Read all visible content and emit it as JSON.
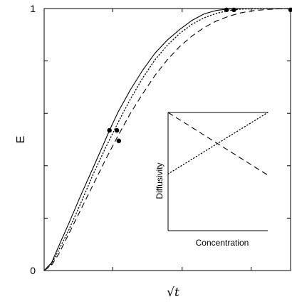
{
  "chart_data": [
    {
      "type": "line",
      "xlabel": "√t",
      "ylabel": "E",
      "xlim": [
        0,
        1
      ],
      "ylim": [
        0,
        1
      ],
      "y_ticks": [
        {
          "value": 0,
          "label": "0"
        },
        {
          "value": 1,
          "label": "1"
        }
      ],
      "x_tick_values": [
        0,
        0.278,
        0.56,
        0.84,
        1
      ],
      "y_minor_tick_values": [
        0.2,
        0.4,
        0.6,
        0.8
      ],
      "grid": false,
      "series": [
        {
          "style": "solid",
          "points": [
            [
              0,
              0
            ],
            [
              0.03,
              0.03
            ],
            [
              0.06,
              0.095
            ],
            [
              0.1,
              0.18
            ],
            [
              0.15,
              0.29
            ],
            [
              0.2,
              0.395
            ],
            [
              0.24,
              0.48
            ],
            [
              0.265,
              0.535
            ],
            [
              0.3,
              0.605
            ],
            [
              0.35,
              0.69
            ],
            [
              0.4,
              0.765
            ],
            [
              0.45,
              0.83
            ],
            [
              0.5,
              0.88
            ],
            [
              0.55,
              0.92
            ],
            [
              0.6,
              0.955
            ],
            [
              0.65,
              0.98
            ],
            [
              0.7,
              0.993
            ],
            [
              0.75,
              0.998
            ],
            [
              0.8,
              1.0
            ],
            [
              1.0,
              1.0
            ]
          ]
        },
        {
          "style": "dotted",
          "points": [
            [
              0,
              0
            ],
            [
              0.03,
              0.025
            ],
            [
              0.06,
              0.08
            ],
            [
              0.1,
              0.155
            ],
            [
              0.15,
              0.26
            ],
            [
              0.2,
              0.37
            ],
            [
              0.25,
              0.47
            ],
            [
              0.3,
              0.565
            ],
            [
              0.35,
              0.655
            ],
            [
              0.4,
              0.735
            ],
            [
              0.45,
              0.805
            ],
            [
              0.5,
              0.86
            ],
            [
              0.55,
              0.905
            ],
            [
              0.6,
              0.94
            ],
            [
              0.65,
              0.965
            ],
            [
              0.7,
              0.982
            ],
            [
              0.75,
              0.992
            ],
            [
              0.8,
              0.998
            ],
            [
              1.0,
              1.0
            ]
          ]
        },
        {
          "style": "dashed",
          "points": [
            [
              0,
              0
            ],
            [
              0.03,
              0.02
            ],
            [
              0.06,
              0.065
            ],
            [
              0.1,
              0.14
            ],
            [
              0.15,
              0.235
            ],
            [
              0.2,
              0.33
            ],
            [
              0.25,
              0.425
            ],
            [
              0.3,
              0.515
            ],
            [
              0.35,
              0.6
            ],
            [
              0.4,
              0.675
            ],
            [
              0.45,
              0.745
            ],
            [
              0.5,
              0.805
            ],
            [
              0.55,
              0.855
            ],
            [
              0.6,
              0.895
            ],
            [
              0.65,
              0.928
            ],
            [
              0.7,
              0.953
            ],
            [
              0.75,
              0.971
            ],
            [
              0.8,
              0.984
            ],
            [
              0.85,
              0.992
            ],
            [
              0.9,
              0.996
            ],
            [
              0.95,
              0.999
            ],
            [
              1.0,
              1.0
            ]
          ]
        }
      ],
      "markers": [
        [
          0.265,
          0.535
        ],
        [
          0.295,
          0.535
        ],
        [
          0.303,
          0.495
        ],
        [
          0.74,
          0.995
        ],
        [
          0.77,
          0.995
        ],
        [
          1.0,
          0.995
        ]
      ]
    },
    {
      "type": "line",
      "xlabel": "Concentration",
      "ylabel": "Diffusivity",
      "grid": false,
      "series": [
        {
          "style": "dashed",
          "points": [
            [
              0,
              1
            ],
            [
              1,
              0.47
            ]
          ]
        },
        {
          "style": "dotted",
          "points": [
            [
              0,
              0.48
            ],
            [
              1,
              1
            ]
          ]
        },
        {
          "style": "solid",
          "points": [
            [
              0,
              1
            ],
            [
              1,
              1
            ]
          ]
        }
      ]
    }
  ]
}
